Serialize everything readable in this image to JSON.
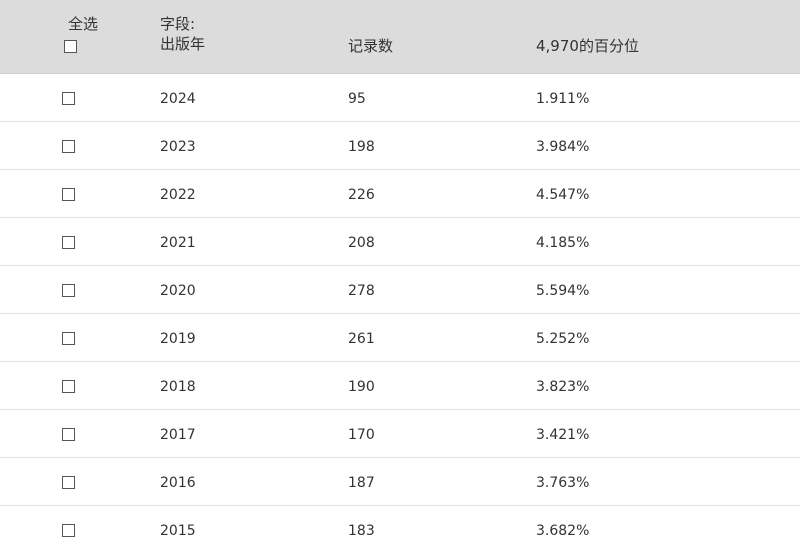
{
  "header": {
    "select_all": "全选",
    "field_line1": "字段:",
    "field_line2": "出版年",
    "count": "记录数",
    "percent": "4,970的百分位"
  },
  "rows": [
    {
      "year": "2024",
      "count": "95",
      "percent": "1.911%"
    },
    {
      "year": "2023",
      "count": "198",
      "percent": "3.984%"
    },
    {
      "year": "2022",
      "count": "226",
      "percent": "4.547%"
    },
    {
      "year": "2021",
      "count": "208",
      "percent": "4.185%"
    },
    {
      "year": "2020",
      "count": "278",
      "percent": "5.594%"
    },
    {
      "year": "2019",
      "count": "261",
      "percent": "5.252%"
    },
    {
      "year": "2018",
      "count": "190",
      "percent": "3.823%"
    },
    {
      "year": "2017",
      "count": "170",
      "percent": "3.421%"
    },
    {
      "year": "2016",
      "count": "187",
      "percent": "3.763%"
    },
    {
      "year": "2015",
      "count": "183",
      "percent": "3.682%"
    }
  ]
}
